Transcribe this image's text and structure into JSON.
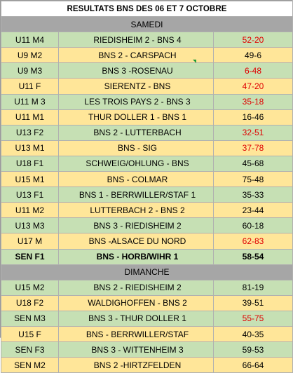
{
  "title": "RESULTATS BNS DES 06 ET 7 OCTOBRE",
  "sections": [
    {
      "label": "SAMEDI",
      "rows": [
        {
          "team": "U11 M4",
          "match": "RIEDISHEIM 2 - BNS 4",
          "score": "52-20",
          "score_color": "red",
          "row_color": "green",
          "bold": false
        },
        {
          "team": "U9 M2",
          "match": "BNS 2 - CARSPACH",
          "score": "49-6",
          "score_color": "black",
          "row_color": "yellow",
          "bold": false
        },
        {
          "team": "U9 M3",
          "match": "BNS 3 -ROSENAU",
          "score": "6-48",
          "score_color": "red",
          "row_color": "green",
          "bold": false
        },
        {
          "team": "U11 F",
          "match": "SIERENTZ - BNS",
          "score": "47-20",
          "score_color": "red",
          "row_color": "yellow",
          "bold": false
        },
        {
          "team": "U11 M 3",
          "match": "LES TROIS PAYS 2 - BNS 3",
          "score": "35-18",
          "score_color": "red",
          "row_color": "green",
          "bold": false
        },
        {
          "team": "U11 M1",
          "match": "THUR DOLLER 1 - BNS 1",
          "score": "16-46",
          "score_color": "black",
          "row_color": "yellow",
          "bold": false
        },
        {
          "team": "U13 F2",
          "match": "BNS 2 - LUTTERBACH",
          "score": "32-51",
          "score_color": "red",
          "row_color": "green",
          "bold": false
        },
        {
          "team": "U13 M1",
          "match": "BNS - SIG",
          "score": "37-78",
          "score_color": "red",
          "row_color": "yellow",
          "bold": false
        },
        {
          "team": "U18 F1",
          "match": "SCHWEIG/OHLUNG - BNS",
          "score": "45-68",
          "score_color": "black",
          "row_color": "green",
          "bold": false
        },
        {
          "team": "U15 M1",
          "match": "BNS - COLMAR",
          "score": "75-48",
          "score_color": "black",
          "row_color": "yellow",
          "bold": false
        },
        {
          "team": "U13 F1",
          "match": "BNS 1 - BERRWILLER/STAF 1",
          "score": "35-33",
          "score_color": "black",
          "row_color": "green",
          "bold": false
        },
        {
          "team": "U11 M2",
          "match": "LUTTERBACH 2 - BNS 2",
          "score": "23-44",
          "score_color": "black",
          "row_color": "yellow",
          "bold": false
        },
        {
          "team": "U13 M3",
          "match": "BNS 3 - RIEDISHEIM 2",
          "score": "60-18",
          "score_color": "black",
          "row_color": "green",
          "bold": false
        },
        {
          "team": "U17 M",
          "match": "BNS -ALSACE DU NORD",
          "score": "62-83",
          "score_color": "red",
          "row_color": "yellow",
          "bold": false
        },
        {
          "team": "SEN F1",
          "match": "BNS - HORB/WIHR 1",
          "score": "58-54",
          "score_color": "black",
          "row_color": "green",
          "bold": true
        }
      ]
    },
    {
      "label": "DIMANCHE",
      "rows": [
        {
          "team": "U15 M2",
          "match": "BNS 2 - RIEDISHEIM 2",
          "score": "81-19",
          "score_color": "black",
          "row_color": "green",
          "bold": false
        },
        {
          "team": "U18 F2",
          "match": "WALDIGHOFFEN - BNS 2",
          "score": "39-51",
          "score_color": "black",
          "row_color": "yellow",
          "bold": false
        },
        {
          "team": "SEN M3",
          "match": "BNS 3 - THUR DOLLER 1",
          "score": "55-75",
          "score_color": "red",
          "row_color": "green",
          "bold": false
        },
        {
          "team": "U15 F",
          "match": "BNS - BERRWILLER/STAF",
          "score": "40-35",
          "score_color": "black",
          "row_color": "yellow",
          "bold": false
        },
        {
          "team": "SEN F3",
          "match": "BNS 3 - WITTENHEIM 3",
          "score": "59-53",
          "score_color": "black",
          "row_color": "green",
          "bold": false
        },
        {
          "team": "SEN M2",
          "match": "BNS 2 -HIRTZFELDEN",
          "score": "66-64",
          "score_color": "black",
          "row_color": "yellow",
          "bold": false
        }
      ]
    }
  ]
}
